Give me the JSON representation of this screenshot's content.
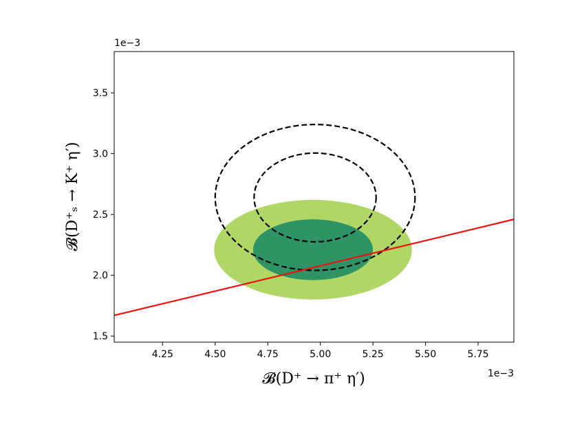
{
  "chart_data": {
    "type": "contour",
    "xlabel": "𝓑(D⁺ → π⁺ η′)",
    "ylabel": "𝓑(D⁺ₛ → K⁺ η′)",
    "x_offset_label": "1e−3",
    "y_offset_label": "1e−3",
    "xlim": [
      4.02,
      5.92
    ],
    "ylim": [
      1.45,
      3.84
    ],
    "xticks": [
      4.25,
      4.5,
      4.75,
      5.0,
      5.25,
      5.5,
      5.75
    ],
    "xtick_labels": [
      "4.25",
      "4.50",
      "4.75",
      "5.00",
      "5.25",
      "5.50",
      "5.75"
    ],
    "yticks": [
      1.5,
      2.0,
      2.5,
      3.0,
      3.5
    ],
    "ytick_labels": [
      "1.5",
      "2.0",
      "2.5",
      "3.0",
      "3.5"
    ],
    "grid": false,
    "filled_regions": [
      {
        "level": "outer",
        "color": "#b0d766",
        "center": [
          4.965,
          2.21
        ],
        "x_halfwidth": 0.47,
        "y_halfwidth": 0.41
      },
      {
        "level": "inner",
        "color": "#2e9365",
        "center": [
          4.965,
          2.21
        ],
        "x_halfwidth": 0.285,
        "y_halfwidth": 0.25
      }
    ],
    "dashed_contours": [
      {
        "level": "outer",
        "color": "#000000",
        "center": [
          4.975,
          2.64
        ],
        "x_halfwidth": 0.475,
        "y_halfwidth": 0.6
      },
      {
        "level": "inner",
        "color": "#000000",
        "center": [
          4.975,
          2.64
        ],
        "x_halfwidth": 0.29,
        "y_halfwidth": 0.365
      }
    ],
    "line": {
      "color": "#ee1111",
      "x": [
        4.02,
        5.92
      ],
      "y": [
        1.67,
        2.46
      ]
    }
  }
}
